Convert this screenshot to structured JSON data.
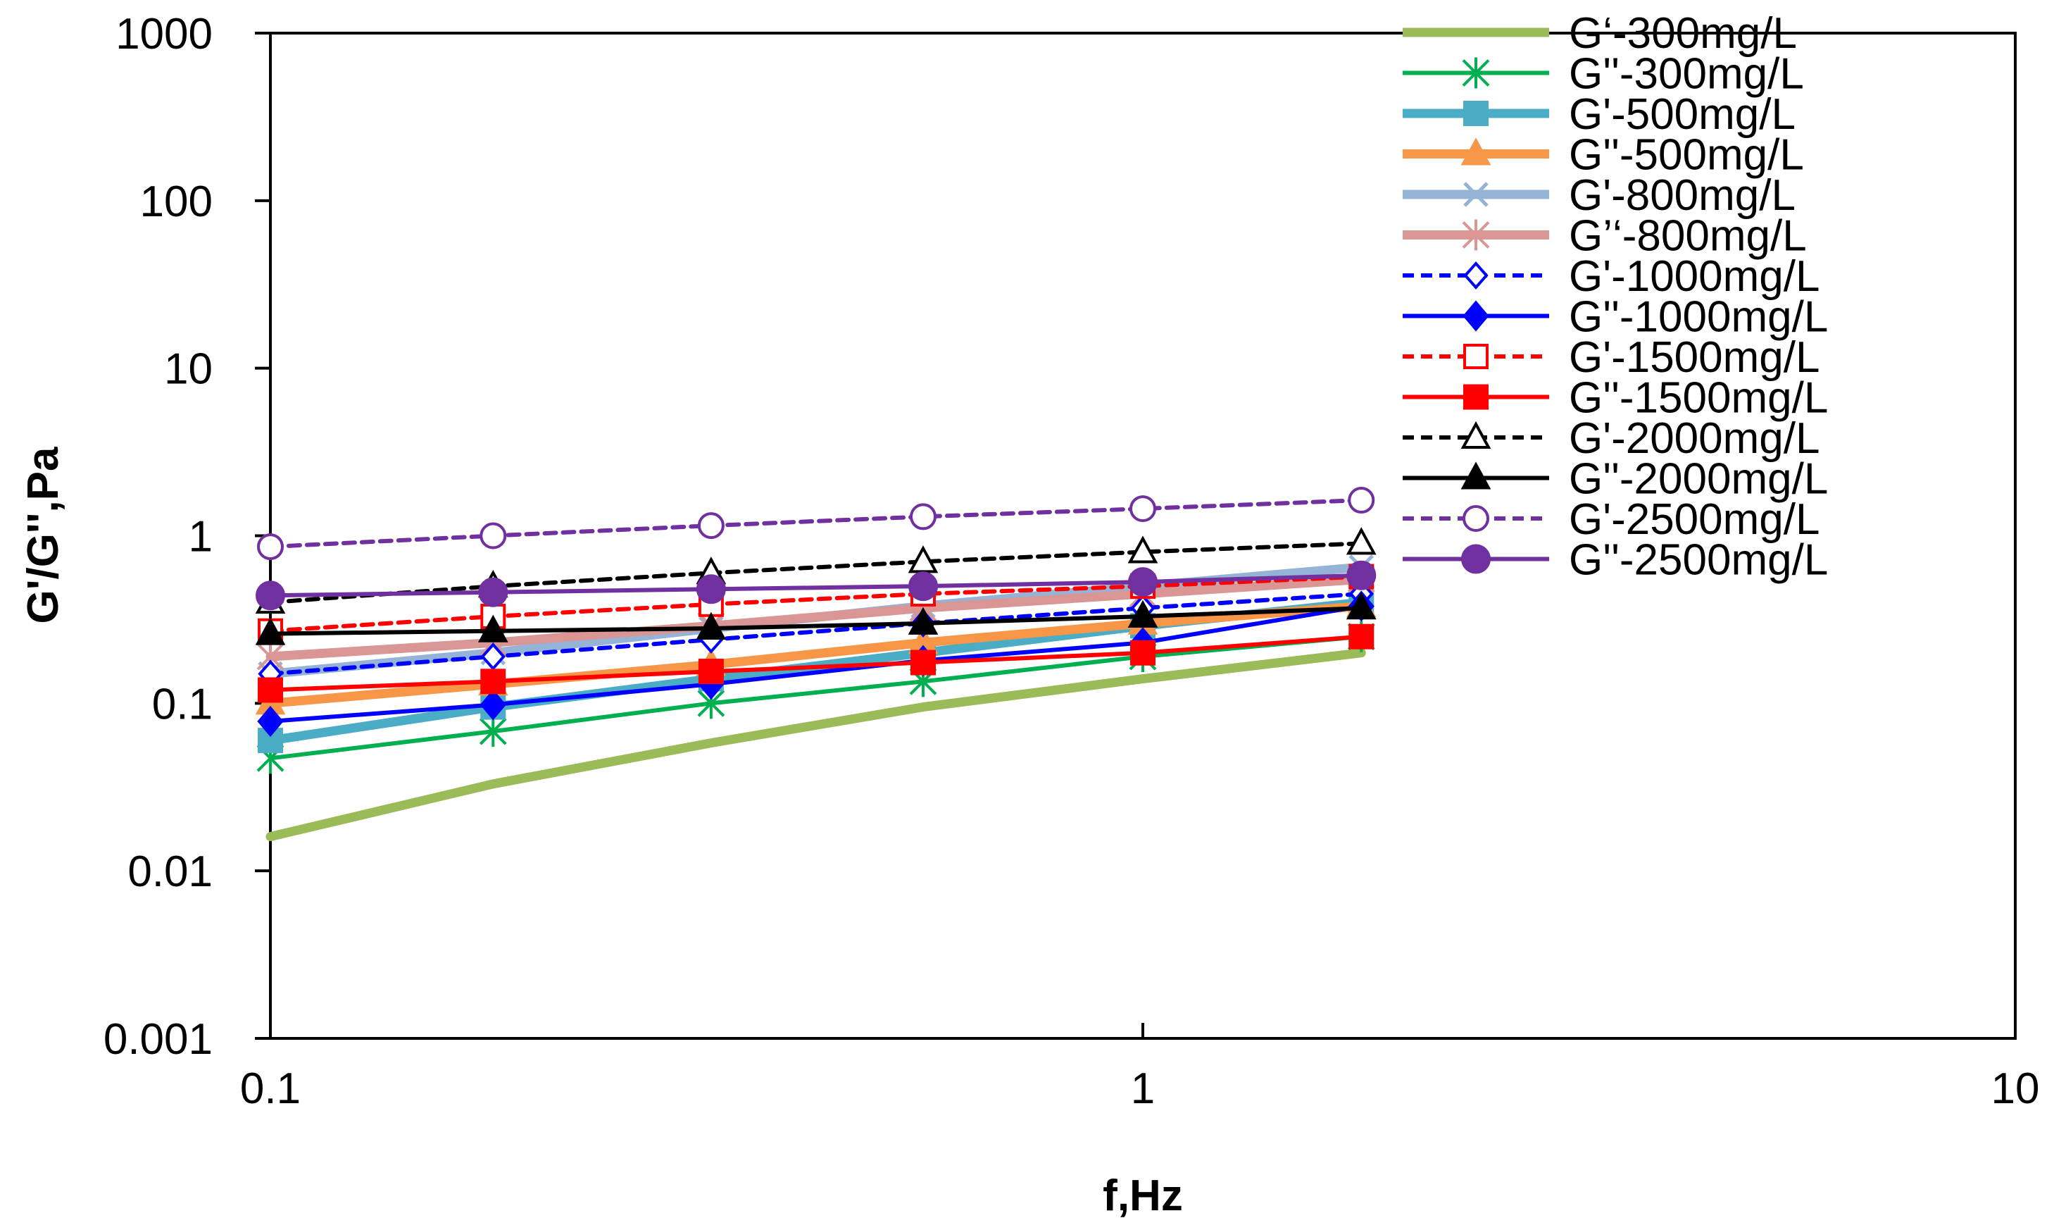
{
  "chart_data": {
    "type": "line",
    "title": "",
    "xlabel": "f,Hz",
    "ylabel": "G'/G'',Pa",
    "x_scale": "log",
    "y_scale": "log",
    "xlim": [
      0.1,
      10
    ],
    "ylim": [
      0.001,
      1000
    ],
    "x_ticks": [
      "0.1",
      "1",
      "10"
    ],
    "y_ticks": [
      "0.001",
      "0.01",
      "0.1",
      "1",
      "10",
      "100",
      "1000"
    ],
    "x": [
      0.1,
      0.18,
      0.32,
      0.56,
      1.0,
      1.78
    ],
    "grid": false,
    "legend_position": "right",
    "series": [
      {
        "name": "G‘-300mg/L",
        "color": "#9BBB59",
        "dash": "solid",
        "marker": "none",
        "width": "thick",
        "values": [
          0.016,
          0.033,
          0.058,
          0.095,
          0.14,
          0.2
        ]
      },
      {
        "name": "G''-300mg/L",
        "color": "#00B050",
        "dash": "solid",
        "marker": "star",
        "width": "normal",
        "values": [
          0.047,
          0.068,
          0.1,
          0.135,
          0.19,
          0.25
        ]
      },
      {
        "name": "G'-500mg/L",
        "color": "#4BACC6",
        "dash": "solid",
        "marker": "square",
        "width": "thick",
        "values": [
          0.06,
          0.095,
          0.14,
          0.2,
          0.29,
          0.4
        ]
      },
      {
        "name": "G''-500mg/L",
        "color": "#F79646",
        "dash": "solid",
        "marker": "triangle",
        "width": "thick",
        "values": [
          0.1,
          0.13,
          0.17,
          0.23,
          0.3,
          0.38
        ]
      },
      {
        "name": "G'-800mg/L",
        "color": "#95B3D7",
        "dash": "solid",
        "marker": "x",
        "width": "thick",
        "values": [
          0.15,
          0.2,
          0.28,
          0.38,
          0.5,
          0.65
        ]
      },
      {
        "name": "G’‘-800mg/L",
        "color": "#D99694",
        "dash": "solid",
        "marker": "star",
        "width": "thick",
        "values": [
          0.19,
          0.23,
          0.29,
          0.37,
          0.45,
          0.55
        ]
      },
      {
        "name": "G'-1000mg/L",
        "color": "#0000FF",
        "dash": "dashed",
        "marker": "diamond-open",
        "width": "normal",
        "values": [
          0.15,
          0.19,
          0.24,
          0.3,
          0.37,
          0.45
        ]
      },
      {
        "name": "G''-1000mg/L",
        "color": "#0000FF",
        "dash": "solid",
        "marker": "diamond",
        "width": "normal",
        "values": [
          0.078,
          0.098,
          0.13,
          0.18,
          0.23,
          0.38
        ]
      },
      {
        "name": "G'-1500mg/L",
        "color": "#FF0000",
        "dash": "dashed",
        "marker": "square-open",
        "width": "normal",
        "values": [
          0.27,
          0.33,
          0.39,
          0.45,
          0.5,
          0.57
        ]
      },
      {
        "name": "G''-1500mg/L",
        "color": "#FF0000",
        "dash": "solid",
        "marker": "square",
        "width": "normal",
        "values": [
          0.12,
          0.135,
          0.155,
          0.175,
          0.2,
          0.25
        ]
      },
      {
        "name": "G'-2000mg/L",
        "color": "#000000",
        "dash": "dashed",
        "marker": "triangle-open",
        "width": "normal",
        "values": [
          0.4,
          0.5,
          0.6,
          0.7,
          0.8,
          0.9
        ]
      },
      {
        "name": "G''-2000mg/L",
        "color": "#000000",
        "dash": "solid",
        "marker": "triangle",
        "width": "normal",
        "values": [
          0.26,
          0.27,
          0.28,
          0.3,
          0.33,
          0.37
        ]
      },
      {
        "name": "G'-2500mg/L",
        "color": "#7030A0",
        "dash": "dashed",
        "marker": "circle-open",
        "width": "normal",
        "values": [
          0.86,
          1.0,
          1.15,
          1.3,
          1.45,
          1.63
        ]
      },
      {
        "name": "G''-2500mg/L",
        "color": "#7030A0",
        "dash": "solid",
        "marker": "circle",
        "width": "normal",
        "values": [
          0.44,
          0.46,
          0.48,
          0.5,
          0.53,
          0.58
        ]
      }
    ]
  }
}
